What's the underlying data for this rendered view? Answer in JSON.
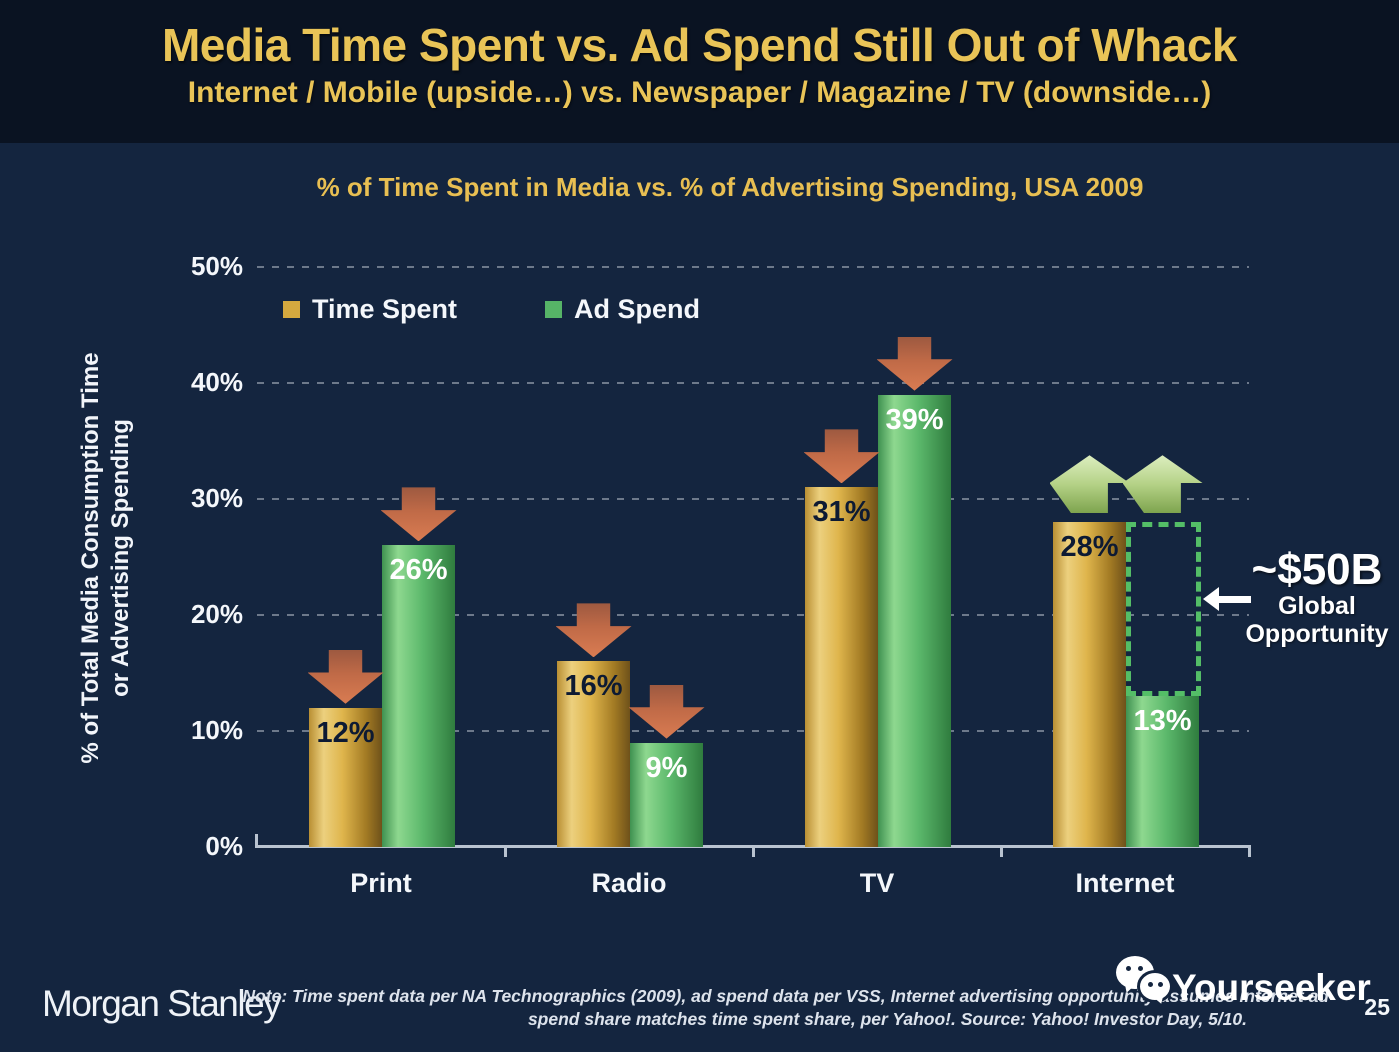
{
  "slide": {
    "title": "Media Time Spent vs. Ad Spend Still Out of Whack",
    "subtitle": "Internet / Mobile (upside…) vs. Newspaper / Magazine / TV (downside…)"
  },
  "chart_data": {
    "type": "bar",
    "title": "% of Time Spent in Media vs. % of Advertising Spending, USA 2009",
    "ylabel_lines": [
      "% of Total Media Consumption Time",
      "or Advertising Spending"
    ],
    "categories": [
      "Print",
      "Radio",
      "TV",
      "Internet"
    ],
    "series": [
      {
        "name": "Time Spent",
        "values": [
          12,
          16,
          31,
          28
        ],
        "color": "#D5A93F",
        "value_label_color": "#0d1a33"
      },
      {
        "name": "Ad Spend",
        "values": [
          26,
          9,
          39,
          13
        ],
        "color": "#56B467",
        "value_label_color": "#ffffff"
      }
    ],
    "unit": "%",
    "ylim": [
      0,
      50
    ],
    "yticks": [
      "0%",
      "10%",
      "20%",
      "30%",
      "40%",
      "50%"
    ],
    "grid": "dashed-horizontal",
    "legend_position": "top-left-inside",
    "trend_arrows": [
      "down",
      "down",
      "down",
      "up"
    ],
    "annotation": {
      "headline": "~$50B",
      "line1": "Global",
      "line2": "Opportunity",
      "points_at": "gap between Internet time spent (28%) and ad spend (13%)"
    },
    "colors": {
      "time_spent_bar": "#D5A93F",
      "ad_spend_bar": "#56B467",
      "down_arrow": "#C9704C",
      "up_arrow": "#B5D287",
      "gap_box_dots": "#54BE67",
      "gold_text": "#E8BF52",
      "background": "#14253F",
      "header_background": "#0A1322"
    }
  },
  "footer": {
    "logo_text": "Morgan Stanley",
    "note_line1": "Note: Time spent data per NA Technographics (2009), ad spend data per VSS, Internet advertising opportunity assumes internet ad",
    "note_line2": "spend share matches time spent share, per Yahoo!. Source: Yahoo! Investor Day, 5/10.",
    "watermark_text": "Yourseeker",
    "page_number": "25"
  }
}
